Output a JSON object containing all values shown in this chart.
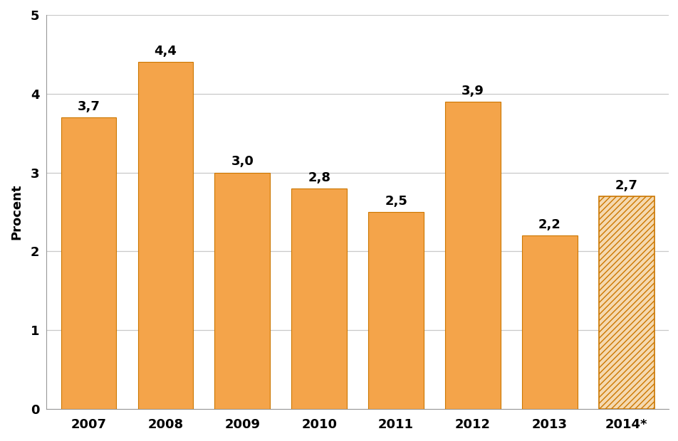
{
  "categories": [
    "2007",
    "2008",
    "2009",
    "2010",
    "2011",
    "2012",
    "2013",
    "2014*"
  ],
  "values": [
    3.7,
    4.4,
    3.0,
    2.8,
    2.5,
    3.9,
    2.2,
    2.7
  ],
  "labels": [
    "3,7",
    "4,4",
    "3,0",
    "2,8",
    "2,5",
    "3,9",
    "2,2",
    "2,7"
  ],
  "bar_color_solid": "#F4A44A",
  "bar_color_hatched_face": "#F5D9B0",
  "bar_color_hatched_edge": "#CC7700",
  "bar_edge_color": "#CC7700",
  "hatch_pattern": "////",
  "ylabel": "Procent",
  "ylim": [
    0,
    5
  ],
  "yticks": [
    0,
    1,
    2,
    3,
    4,
    5
  ],
  "grid_color": "#C8C8C8",
  "background_color": "#FFFFFF",
  "label_fontsize": 13,
  "axis_fontsize": 13,
  "tick_fontsize": 13,
  "bar_width": 0.72
}
